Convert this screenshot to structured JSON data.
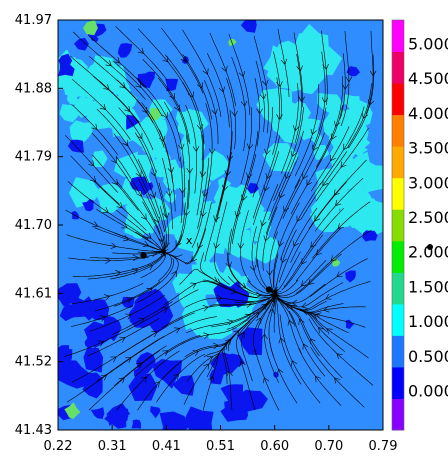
{
  "chart_data": {
    "type": "heatmap",
    "title": "",
    "xlabel": "",
    "ylabel": "",
    "xlim": [
      0.22,
      0.79
    ],
    "ylim": [
      41.43,
      41.97
    ],
    "x_ticks": [
      "0.22",
      "0.31",
      "0.41",
      "0.51",
      "0.60",
      "0.70",
      "0.79"
    ],
    "y_ticks": [
      "41.97",
      "41.88",
      "41.79",
      "41.70",
      "41.61",
      "41.52",
      "41.43"
    ],
    "colorbar": {
      "ticks": [
        "5.000",
        "4.500",
        "4.000",
        "3.500",
        "3.000",
        "2.500",
        "2.000",
        "1.500",
        "1.000",
        "0.500",
        "0.000"
      ],
      "colors": [
        "#8800ff",
        "#0000ff",
        "#1e78ff",
        "#00ffff",
        "#21d98c",
        "#00ee00",
        "#88dd00",
        "#ffff00",
        "#ffaa00",
        "#ff8000",
        "#ff0000",
        "#ee0066",
        "#ff00ff"
      ]
    },
    "palette": {
      "background": "#2f8dff",
      "low": "#0a16f0",
      "mid": "#2ee8ef",
      "high": "#66e066",
      "streamline": "#000000"
    },
    "points": [
      {
        "x": 0.37,
        "y": 41.66
      },
      {
        "x": 0.59,
        "y": 41.615
      }
    ],
    "markers": [
      {
        "x": 0.45,
        "y": 41.68,
        "symbol": "x"
      }
    ]
  }
}
